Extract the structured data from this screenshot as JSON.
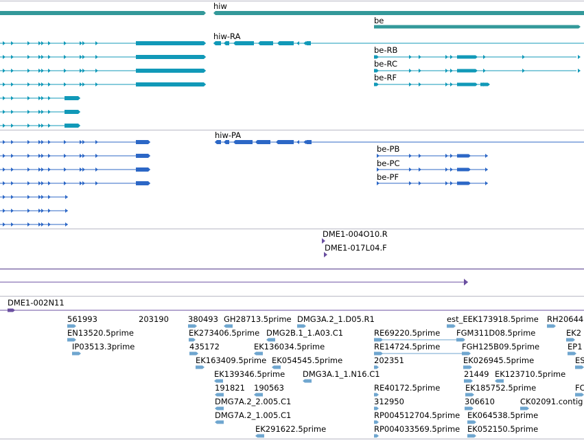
{
  "colors": {
    "gene": "#33999a",
    "flybase": "#1199b8",
    "annot": "#2c67c6",
    "purple": "#6a4fa0",
    "est": "#6fa6cf",
    "divider": "#b8b8c4"
  },
  "genes": [
    "hiw",
    "be"
  ],
  "flybase_transcripts": [
    "hiw-RA",
    "be-RB",
    "be-RC",
    "be-RF"
  ],
  "annot_transcripts": [
    "hiw-PA",
    "be-PB",
    "be-PC",
    "be-PF"
  ],
  "clones": [
    "DME1-004O10.R",
    "DME1-017L04.F",
    "DME1-002N11"
  ],
  "est_labels": [
    "561993",
    "203190",
    "380493",
    "GH28713.5prime",
    "DMG3A.2_1.D05.R1",
    "est_EEK173918.5prime",
    "RH20644",
    "EN13520.5prime",
    "EK273406.5prime",
    "DMG2B.1_1.A03.C1",
    "RE69220.5prime",
    "FGM311D08.5prime",
    "EK2",
    "IP03513.3prime",
    "435172",
    "EK136034.5prime",
    "RE14724.5prime",
    "FGH125B09.5prime",
    "EP1",
    "EK163409.5prime",
    "EK054545.5prime",
    "202351",
    "EK026945.5prime",
    "ES",
    "EK139346.5prime",
    "DMG3A.1_1.N16.C1",
    "21449",
    "EK123710.5prime",
    "191821",
    "190563",
    "RE40172.5prime",
    "EK185752.5prime",
    "FC",
    "DMG7A.2_2.005.C1",
    "312950",
    "306610",
    "CK02091.contig",
    "DMG7A.2_1.005.C1",
    "RP004512704.5prime",
    "EK064538.5prime",
    "EK291622.5prime",
    "RP004033569.5prime",
    "EK052150.5prime"
  ]
}
